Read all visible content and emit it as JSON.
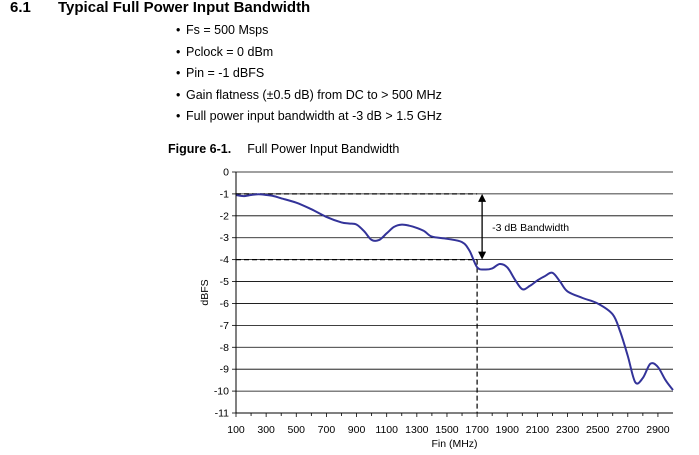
{
  "section": {
    "number": "6.1",
    "title": "Typical Full Power Input Bandwidth"
  },
  "bullets": [
    "Fs = 500 Msps",
    "Pclock = 0 dBm",
    "Pin = -1 dBFS",
    "Gain flatness (±0.5 dB) from DC to > 500 MHz",
    "Full power input bandwidth at -3 dB > 1.5 GHz"
  ],
  "figure": {
    "number": "Figure 6-1.",
    "caption": "Full Power Input Bandwidth"
  },
  "chart_data": {
    "type": "line",
    "title": "",
    "xlabel": "Fin (MHz)",
    "ylabel": "dBFS",
    "xlim": [
      100,
      3000
    ],
    "ylim": [
      -11,
      0
    ],
    "x_ticks": [
      100,
      300,
      500,
      700,
      900,
      1100,
      1300,
      1500,
      1700,
      1900,
      2100,
      2300,
      2500,
      2700,
      2900
    ],
    "y_ticks": [
      0,
      -1,
      -2,
      -3,
      -4,
      -5,
      -6,
      -7,
      -8,
      -9,
      -10,
      -11
    ],
    "grid": "horizontal",
    "series": [
      {
        "color": "#333399",
        "x": [
          100,
          150,
          200,
          250,
          300,
          350,
          400,
          500,
          600,
          700,
          800,
          850,
          900,
          950,
          1000,
          1050,
          1100,
          1150,
          1200,
          1250,
          1300,
          1350,
          1400,
          1500,
          1600,
          1650,
          1700,
          1750,
          1800,
          1850,
          1900,
          1950,
          2000,
          2050,
          2100,
          2150,
          2200,
          2250,
          2300,
          2400,
          2500,
          2600,
          2650,
          2700,
          2750,
          2800,
          2850,
          2900,
          2950,
          3000
        ],
        "y": [
          -1.05,
          -1.1,
          -1.05,
          -1.02,
          -1.05,
          -1.1,
          -1.2,
          -1.4,
          -1.7,
          -2.05,
          -2.3,
          -2.35,
          -2.4,
          -2.7,
          -3.1,
          -3.1,
          -2.8,
          -2.5,
          -2.4,
          -2.45,
          -2.55,
          -2.7,
          -2.95,
          -3.05,
          -3.2,
          -3.6,
          -4.35,
          -4.45,
          -4.4,
          -4.2,
          -4.35,
          -4.9,
          -5.35,
          -5.2,
          -4.95,
          -4.75,
          -4.6,
          -5.0,
          -5.45,
          -5.75,
          -6.0,
          -6.5,
          -7.3,
          -8.4,
          -9.6,
          -9.4,
          -8.75,
          -8.9,
          -9.5,
          -9.95
        ]
      }
    ],
    "reference_levels": [
      -1,
      -4
    ],
    "reference_x": 1700,
    "annotation": {
      "text": "-3 dB Bandwidth",
      "arrow_from": -1,
      "arrow_to": -4
    }
  }
}
